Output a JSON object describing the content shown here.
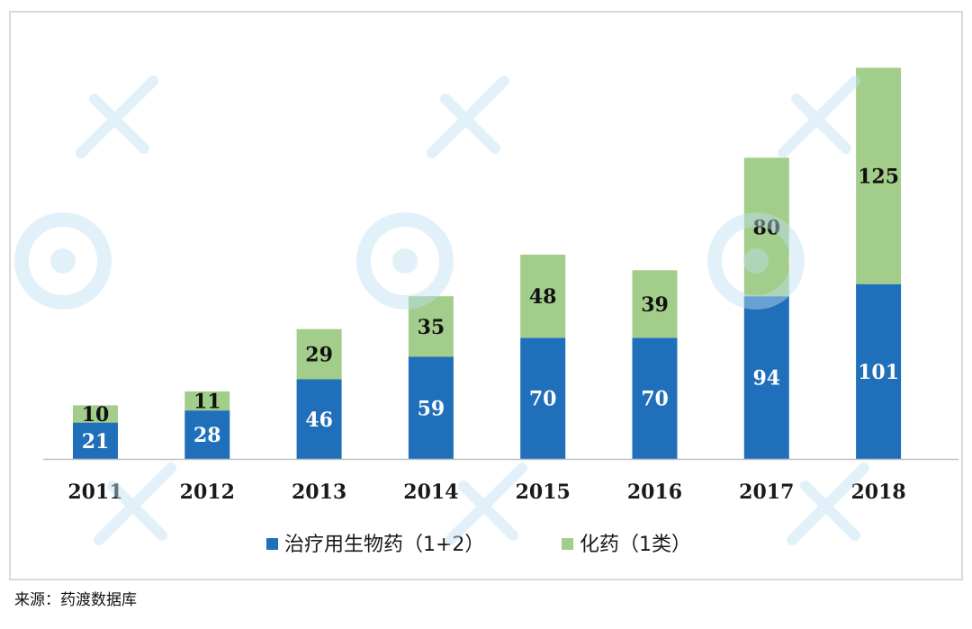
{
  "colors": {
    "series_blue": "#1f6fba",
    "series_green": "#a3cd8a",
    "axis": "#bfbfbf",
    "text": "#1a1a1a",
    "value_light": "#ffffff",
    "value_dark": "#111111",
    "watermark": "#bfe0f2"
  },
  "chart_data": {
    "type": "bar",
    "stacked": true,
    "categories": [
      "2011",
      "2012",
      "2013",
      "2014",
      "2015",
      "2016",
      "2017",
      "2018"
    ],
    "series": [
      {
        "name": "治疗用生物药（1+2）",
        "color": "#1f6fba",
        "values": [
          21,
          28,
          46,
          59,
          70,
          70,
          94,
          101
        ]
      },
      {
        "name": "化药（1类）",
        "color": "#a3cd8a",
        "values": [
          10,
          11,
          29,
          35,
          48,
          39,
          80,
          125
        ]
      }
    ],
    "ylim": [
      0,
      235
    ],
    "grid": false,
    "legend": "bottom",
    "data_labels": true
  },
  "source": "来源：药渡数据库",
  "watermark": {
    "icon": "pharmacodia-logo-icon"
  }
}
